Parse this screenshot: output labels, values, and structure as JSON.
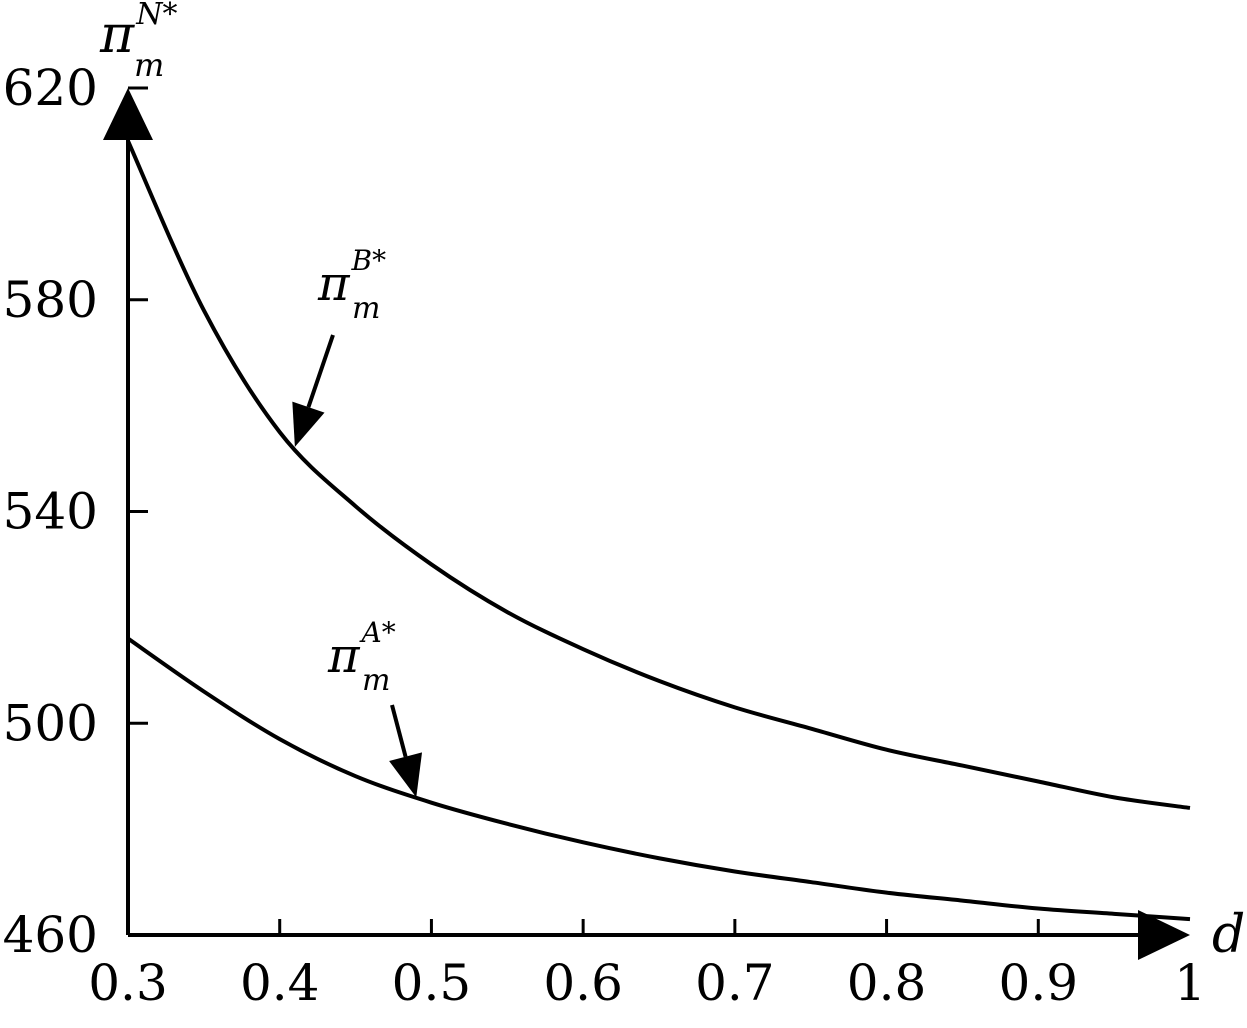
{
  "chart_data": {
    "type": "line",
    "title": "",
    "xlabel": "d",
    "ylabel": {
      "base": "π",
      "sup": "N*",
      "sub": "m"
    },
    "xlim": [
      0.3,
      1.0
    ],
    "ylim": [
      460,
      620
    ],
    "x_ticks": [
      0.3,
      0.4,
      0.5,
      0.6,
      0.7,
      0.8,
      0.9,
      1.0
    ],
    "x_tick_labels": [
      "0.3",
      "0.4",
      "0.5",
      "0.6",
      "0.7",
      "0.8",
      "0.9",
      "1"
    ],
    "y_ticks": [
      460,
      500,
      540,
      580,
      620
    ],
    "y_tick_labels": [
      "460",
      "500",
      "540",
      "580",
      "620"
    ],
    "grid": false,
    "legend": "none",
    "series": [
      {
        "name": "π_m^B*",
        "label": {
          "base": "π",
          "sup": "B*",
          "sub": "m"
        },
        "x": [
          0.3,
          0.35,
          0.4,
          0.45,
          0.5,
          0.55,
          0.6,
          0.65,
          0.7,
          0.75,
          0.8,
          0.85,
          0.9,
          0.95,
          1.0
        ],
        "values": [
          610,
          578,
          555,
          541,
          530,
          521,
          514,
          508,
          503,
          499,
          495,
          492,
          489,
          486,
          484
        ]
      },
      {
        "name": "π_m^A*",
        "label": {
          "base": "π",
          "sup": "A*",
          "sub": "m"
        },
        "x": [
          0.3,
          0.35,
          0.4,
          0.45,
          0.5,
          0.55,
          0.6,
          0.65,
          0.7,
          0.75,
          0.8,
          0.85,
          0.9,
          0.95,
          1.0
        ],
        "values": [
          516,
          506,
          497,
          490,
          485,
          481,
          477.5,
          474.5,
          472,
          470,
          468,
          466.5,
          465,
          464,
          463
        ]
      }
    ],
    "annotations": [
      {
        "series": 0,
        "target_x": 0.41
      },
      {
        "series": 1,
        "target_x": 0.49
      }
    ]
  }
}
